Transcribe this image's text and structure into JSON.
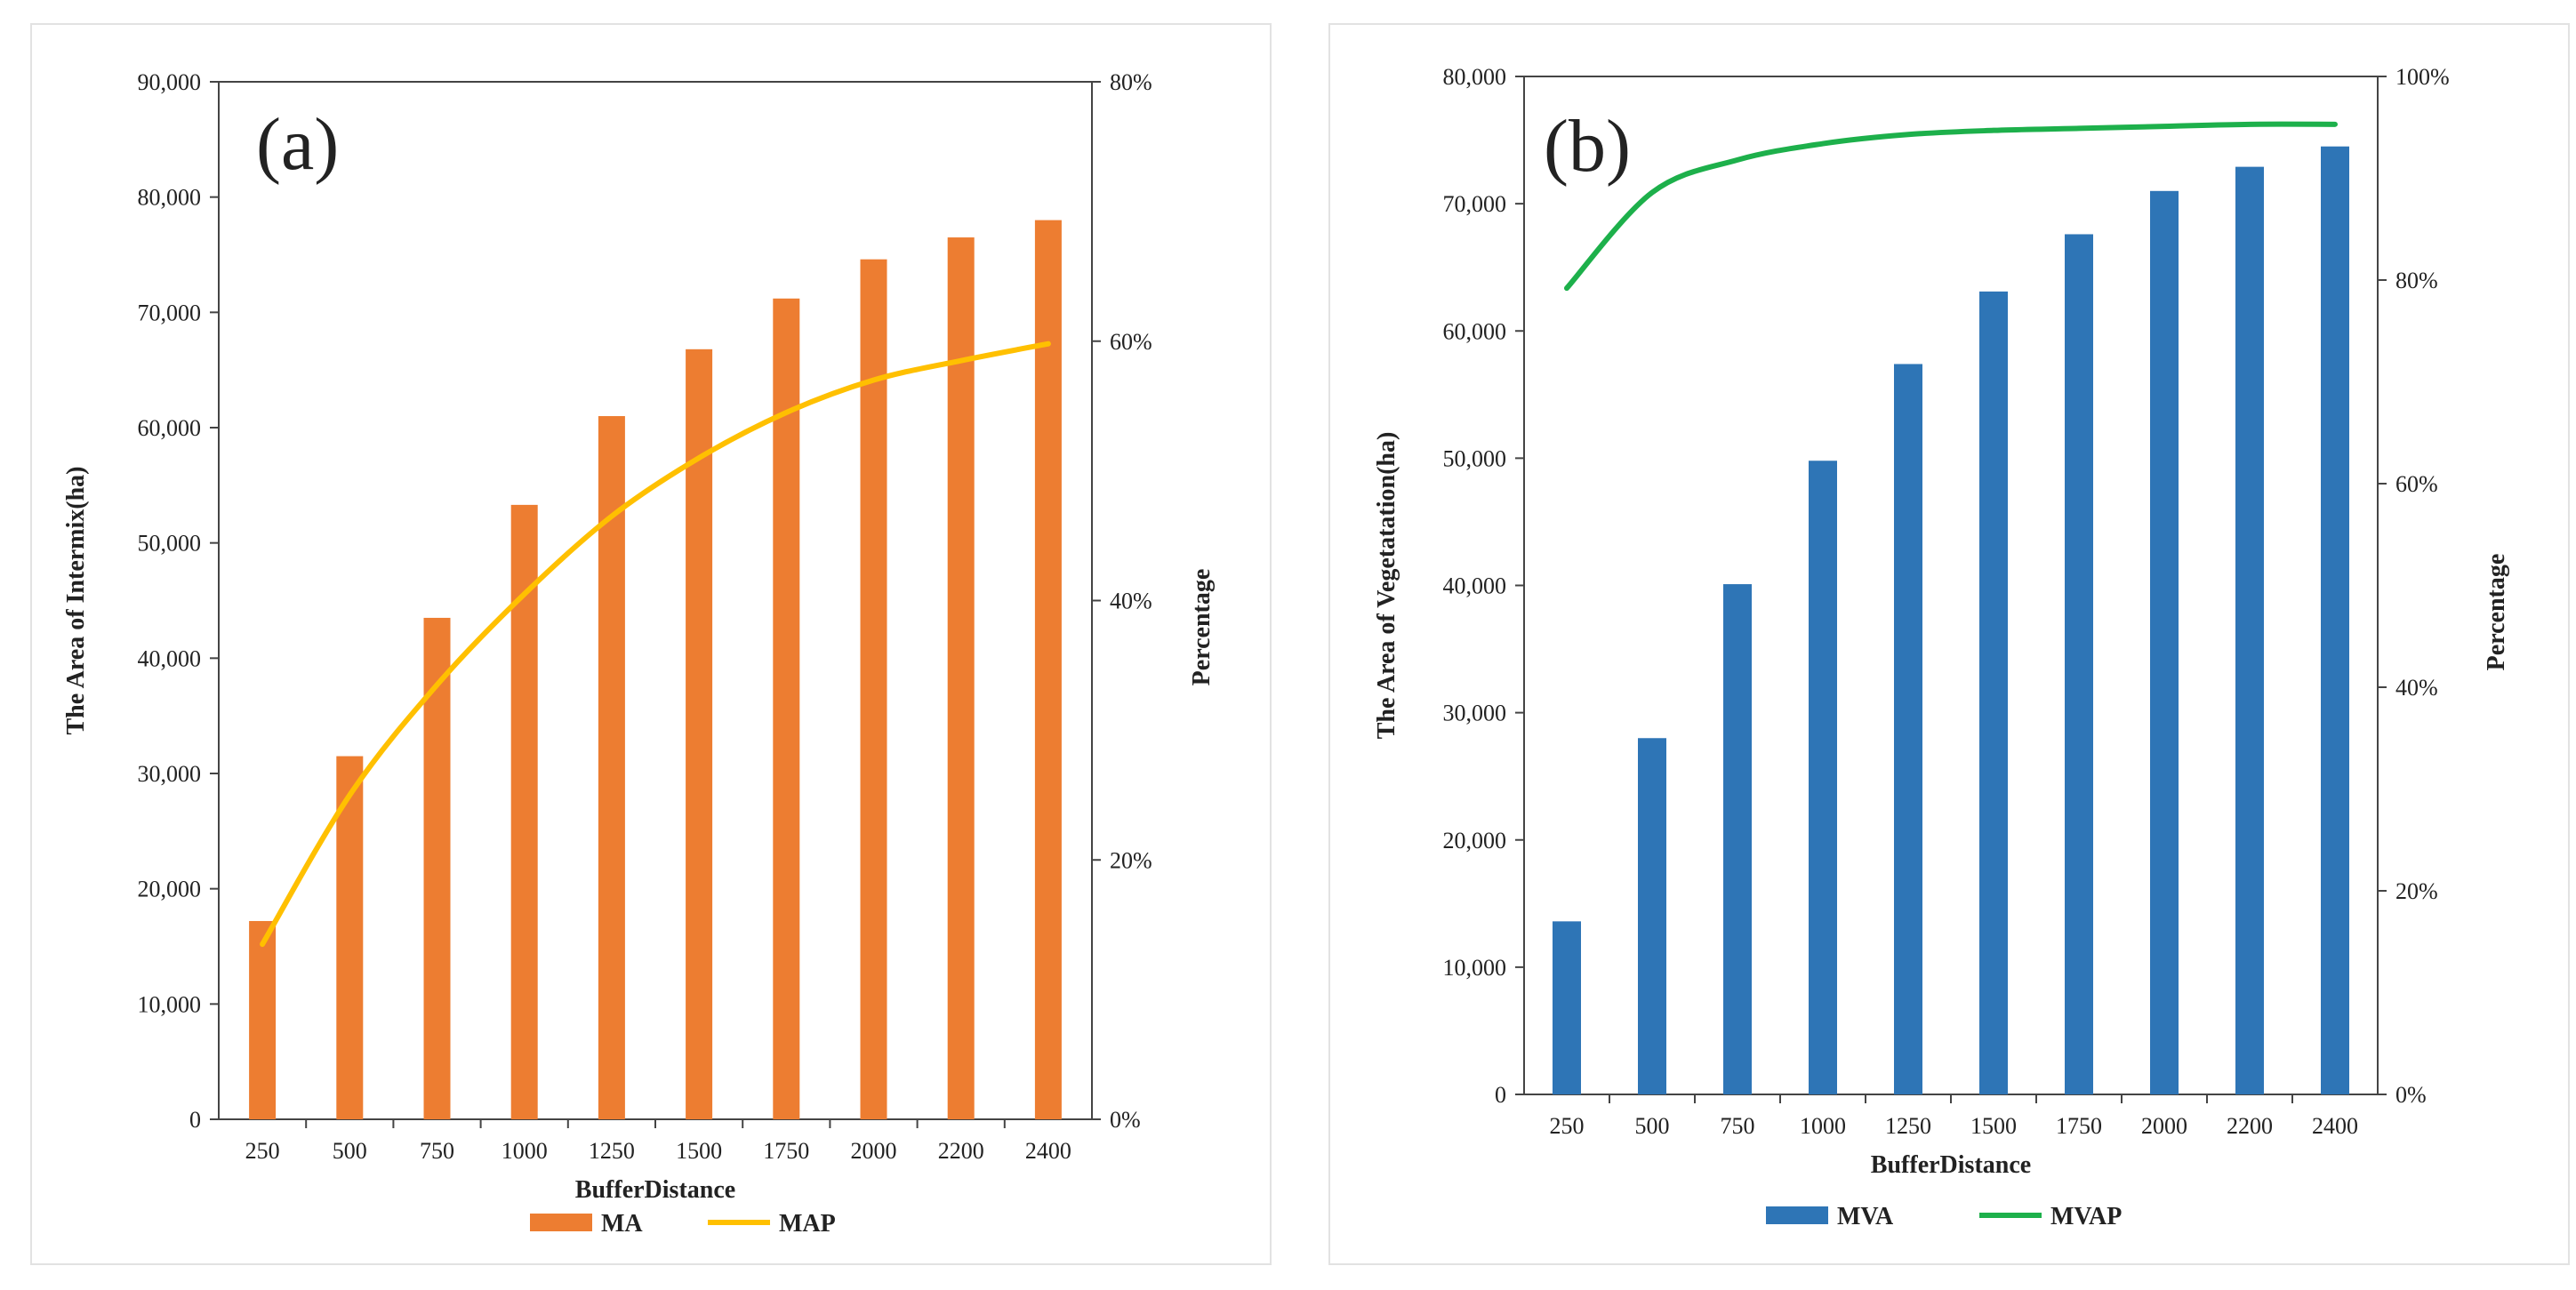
{
  "chart_data": [
    {
      "type": "bar",
      "panel_label": "(a)",
      "categories": [
        "250",
        "500",
        "750",
        "1000",
        "1250",
        "1500",
        "1750",
        "2000",
        "2200",
        "2400"
      ],
      "series": [
        {
          "name": "MA",
          "kind": "bar",
          "axis": "left",
          "color": "#ED7D31",
          "values": [
            17200,
            31500,
            43500,
            53300,
            61000,
            66800,
            71200,
            74600,
            76500,
            78000
          ]
        },
        {
          "name": "MAP",
          "kind": "line",
          "axis": "right",
          "color": "#FFC000",
          "values": [
            0.135,
            0.25,
            0.335,
            0.405,
            0.465,
            0.51,
            0.545,
            0.57,
            0.585,
            0.598
          ]
        }
      ],
      "xlabel": "BufferDistance",
      "ylabel": "The  Area of  Intermix(ha)",
      "y2label": "Percentage",
      "ylim": [
        0,
        90000
      ],
      "y2lim": [
        0,
        0.8
      ],
      "yticks": [
        "0",
        "10,000",
        "20,000",
        "30,000",
        "40,000",
        "50,000",
        "60,000",
        "70,000",
        "80,000",
        "90,000"
      ],
      "y2ticks": [
        "0%",
        "20%",
        "40%",
        "60%",
        "80%"
      ],
      "legend_position": "bottom"
    },
    {
      "type": "bar",
      "panel_label": "(b)",
      "categories": [
        "250",
        "500",
        "750",
        "1000",
        "1250",
        "1500",
        "1750",
        "2000",
        "2200",
        "2400"
      ],
      "series": [
        {
          "name": "MVA",
          "kind": "bar",
          "axis": "left",
          "color": "#2E75B6",
          "values": [
            13600,
            28000,
            40100,
            49800,
            57400,
            63100,
            67600,
            71000,
            72900,
            74500
          ]
        },
        {
          "name": "MVAP",
          "kind": "line",
          "axis": "right",
          "color": "#1DB04B",
          "values": [
            0.792,
            0.886,
            0.918,
            0.934,
            0.943,
            0.947,
            0.949,
            0.951,
            0.953,
            0.953
          ]
        }
      ],
      "xlabel": "BufferDistance",
      "ylabel": "The  Area of  Vegetatation(ha)",
      "y2label": "Percentage",
      "ylim": [
        0,
        80000
      ],
      "y2lim": [
        0,
        1.0
      ],
      "yticks": [
        "0",
        "10,000",
        "20,000",
        "30,000",
        "40,000",
        "50,000",
        "60,000",
        "70,000",
        "80,000"
      ],
      "y2ticks": [
        "0%",
        "20%",
        "40%",
        "60%",
        "80%",
        "100%"
      ],
      "legend_position": "bottom"
    }
  ]
}
